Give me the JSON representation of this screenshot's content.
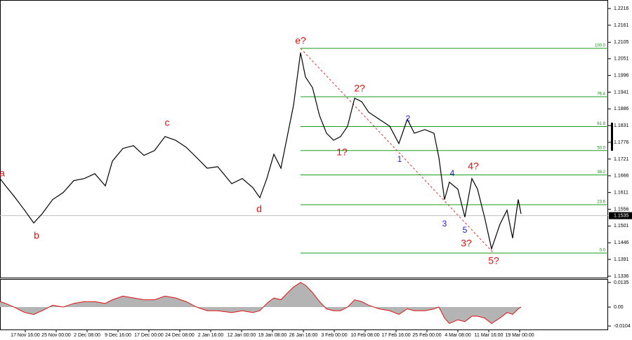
{
  "chart_data": [
    {
      "type": "line",
      "color": "#000000",
      "x": [
        0,
        2,
        5,
        8.75,
        12,
        15,
        18.75,
        22.5,
        26.25,
        30,
        33.75,
        37.5,
        40,
        43.75,
        47.5,
        51.25,
        55,
        58.75,
        62.5,
        66.25,
        70,
        73.75,
        77.5,
        82.5,
        86.25,
        90,
        92.5,
        95,
        97.5,
        100,
        102.5,
        104.5,
        107,
        108.75,
        111.25,
        113.75,
        116.25,
        118.75,
        121.25,
        123.75,
        126.25,
        128.75,
        131.25,
        135,
        138.75,
        142,
        145,
        147.5,
        151.25,
        154.5,
        156.25,
        158.25,
        160,
        163,
        165.5,
        168,
        170,
        172.5,
        175,
        178,
        180.5,
        182.5,
        184.5,
        185.5
      ],
      "values": [
        1.1657,
        1.1633,
        1.1599,
        1.1553,
        1.1511,
        1.1541,
        1.1588,
        1.1611,
        1.165,
        1.1657,
        1.1673,
        1.1633,
        1.1714,
        1.1756,
        1.1765,
        1.1733,
        1.1749,
        1.1795,
        1.1783,
        1.176,
        1.1726,
        1.1691,
        1.1696,
        1.164,
        1.1657,
        1.1627,
        1.1594,
        1.1657,
        1.1737,
        1.1691,
        1.1806,
        1.1898,
        1.2071,
        1.1991,
        1.1956,
        1.1864,
        1.1806,
        1.1783,
        1.1795,
        1.1829,
        1.1921,
        1.191,
        1.1875,
        1.1852,
        1.1829,
        1.1772,
        1.1852,
        1.1806,
        1.1818,
        1.1806,
        1.1726,
        1.1588,
        1.1645,
        1.1622,
        1.153,
        1.1657,
        1.1622,
        1.153,
        1.1426,
        1.1507,
        1.1553,
        1.1461,
        1.1588,
        1.1541
      ],
      "xlim": [
        0,
        216.5
      ],
      "xticks": [
        {
          "value": 9,
          "label": "17 Nov 16:00"
        },
        {
          "value": 20,
          "label": "25 Nov 00:00"
        },
        {
          "value": 31,
          "label": "2 Dec 08:00"
        },
        {
          "value": 42,
          "label": "9 Dec 16:00"
        },
        {
          "value": 53,
          "label": "17 Dec 00:00"
        },
        {
          "value": 64,
          "label": "24 Dec 08:00"
        },
        {
          "value": 75,
          "label": "2 Jan 16:00"
        },
        {
          "value": 86,
          "label": "12 Jan 00:00"
        },
        {
          "value": 97,
          "label": "19 Jan 08:00"
        },
        {
          "value": 108,
          "label": "26 Jan 16:00"
        },
        {
          "value": 119,
          "label": "3 Feb 00:00"
        },
        {
          "value": 130,
          "label": "10 Feb 08:00"
        },
        {
          "value": 141,
          "label": "17 Feb 16:00"
        },
        {
          "value": 152,
          "label": "25 Feb 00:00"
        },
        {
          "value": 163,
          "label": "4 Mar 08:00"
        },
        {
          "value": 174,
          "label": "11 Mar 16:00"
        },
        {
          "value": 185,
          "label": "19 Mar 00:00"
        }
      ],
      "ylim": [
        1.1329,
        1.2244
      ],
      "yticks": [
        1.2216,
        1.2161,
        1.2105,
        1.2051,
        1.1996,
        1.1941,
        1.1886,
        1.1831,
        1.1776,
        1.1721,
        1.1666,
        1.1611,
        1.1556,
        1.1501,
        1.1446,
        1.1391,
        1.1336
      ],
      "current_price": 1.1535,
      "fib_color": "#1a9b1a",
      "fib_levels": [
        {
          "value": 1.2085,
          "label": "100.0"
        },
        {
          "value": 1.1926,
          "label": "76.4"
        },
        {
          "value": 1.1828,
          "label": "61.8"
        },
        {
          "value": 1.1749,
          "label": "50.0"
        },
        {
          "value": 1.1669,
          "label": "38.2"
        },
        {
          "value": 1.1571,
          "label": "23.6"
        },
        {
          "value": 1.1412,
          "label": "0.0"
        }
      ],
      "annotations": [
        "a",
        "b",
        "c",
        "d",
        "e?",
        "1?",
        "2?",
        "1",
        "2",
        "3",
        "4",
        "5",
        "3?",
        "4?",
        "5?"
      ]
    },
    {
      "type": "area",
      "color": "#b4b4b4",
      "line_color": "#e01010",
      "x": [
        0,
        2,
        5,
        8.75,
        12,
        15,
        18.75,
        22.5,
        26.25,
        30,
        33.75,
        37.5,
        40,
        43.75,
        47.5,
        51.25,
        55,
        58.75,
        62.5,
        66.25,
        70,
        73.75,
        77.5,
        82.5,
        86.25,
        90,
        92.5,
        95,
        97.5,
        100,
        102.5,
        104.5,
        107,
        108.75,
        111.25,
        113.75,
        116.25,
        118.75,
        121.25,
        123.75,
        126.25,
        128.75,
        131.25,
        135,
        138.75,
        142,
        145,
        147.5,
        151.25,
        154.5,
        156.25,
        158.25,
        160,
        163,
        165.5,
        168,
        170,
        172.5,
        175,
        178,
        180.5,
        182.5,
        184.5,
        185.5
      ],
      "values": [
        0.003,
        0.002,
        0,
        -0.003,
        -0.004,
        -0.002,
        0.001,
        0,
        0.002,
        0.003,
        0.003,
        0.002,
        0.004,
        0.006,
        0.005,
        0.004,
        0.004,
        0.006,
        0.005,
        0.003,
        0,
        -0.002,
        -0.002,
        -0.003,
        -0.002,
        -0.003,
        -0.002,
        0.002,
        0.005,
        0.004,
        0.008,
        0.011,
        0.0135,
        0.012,
        0.008,
        0.003,
        -0.001,
        -0.002,
        -0.002,
        0,
        0.004,
        0.003,
        0.001,
        -0.001,
        -0.002,
        -0.004,
        -0.001,
        -0.002,
        -0.002,
        -0.001,
        0,
        -0.006,
        -0.009,
        -0.007,
        -0.008,
        -0.005,
        -0.005,
        -0.006,
        -0.009,
        -0.006,
        -0.003,
        -0.004,
        -0.001,
        0
      ],
      "ylim": [
        -0.0123,
        0.0154
      ],
      "yticks": [
        0.0135,
        {
          "value": 0,
          "label": "0.00"
        },
        -0.0104
      ]
    }
  ]
}
